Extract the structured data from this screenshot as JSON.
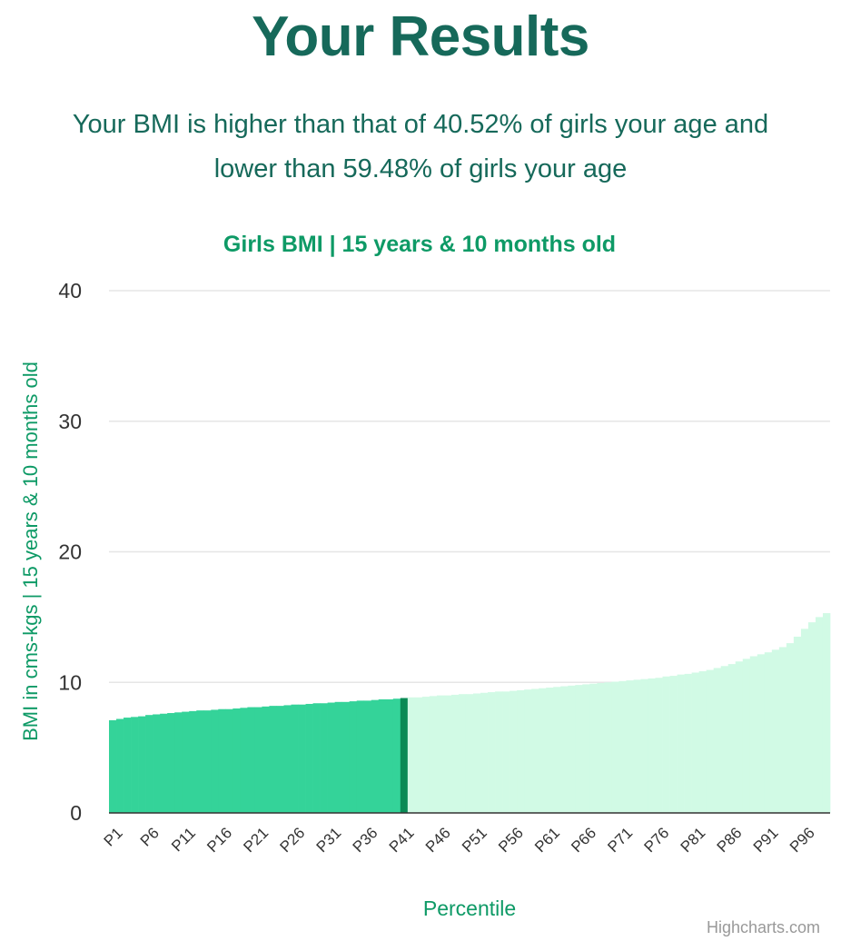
{
  "page": {
    "title": "Your Results",
    "summary_line1": "Your BMI is higher than that of 40.52% of girls your age and",
    "summary_line2": "lower than 59.48% of girls your age"
  },
  "credit": "Highcharts.com",
  "colors": {
    "heading": "#16695a",
    "accent": "#0e9a66",
    "bar_below": "#34d399",
    "bar_selected": "#0a8a55",
    "bar_above": "#d1fae5",
    "grid": "#e6e6e6",
    "axis_text": "#333333"
  },
  "chart_data": {
    "type": "bar",
    "title": "Girls BMI | 15 years & 10 months old",
    "xlabel": "Percentile",
    "ylabel": "BMI in cms-kgs | 15 years & 10 months old",
    "ylim": [
      0,
      40
    ],
    "yticks": [
      0,
      10,
      20,
      30,
      40
    ],
    "grid": true,
    "selected_category": "P41",
    "categories": [
      "P1",
      "P2",
      "P3",
      "P4",
      "P5",
      "P6",
      "P7",
      "P8",
      "P9",
      "P10",
      "P11",
      "P12",
      "P13",
      "P14",
      "P15",
      "P16",
      "P17",
      "P18",
      "P19",
      "P20",
      "P21",
      "P22",
      "P23",
      "P24",
      "P25",
      "P26",
      "P27",
      "P28",
      "P29",
      "P30",
      "P31",
      "P32",
      "P33",
      "P34",
      "P35",
      "P36",
      "P37",
      "P38",
      "P39",
      "P40",
      "P41",
      "P42",
      "P43",
      "P44",
      "P45",
      "P46",
      "P47",
      "P48",
      "P49",
      "P50",
      "P51",
      "P52",
      "P53",
      "P54",
      "P55",
      "P56",
      "P57",
      "P58",
      "P59",
      "P60",
      "P61",
      "P62",
      "P63",
      "P64",
      "P65",
      "P66",
      "P67",
      "P68",
      "P69",
      "P70",
      "P71",
      "P72",
      "P73",
      "P74",
      "P75",
      "P76",
      "P77",
      "P78",
      "P79",
      "P80",
      "P81",
      "P82",
      "P83",
      "P84",
      "P85",
      "P86",
      "P87",
      "P88",
      "P89",
      "P90",
      "P91",
      "P92",
      "P93",
      "P94",
      "P95",
      "P96",
      "P97",
      "P98",
      "P99"
    ],
    "tick_labels": [
      "P1",
      "P6",
      "P11",
      "P16",
      "P21",
      "P26",
      "P31",
      "P36",
      "P41",
      "P46",
      "P51",
      "P56",
      "P61",
      "P66",
      "P71",
      "P76",
      "P81",
      "P86",
      "P91",
      "P96"
    ],
    "values": [
      7.1,
      7.2,
      7.3,
      7.35,
      7.4,
      7.5,
      7.55,
      7.6,
      7.65,
      7.7,
      7.75,
      7.8,
      7.85,
      7.85,
      7.9,
      7.95,
      7.95,
      8.0,
      8.05,
      8.1,
      8.1,
      8.15,
      8.2,
      8.2,
      8.25,
      8.3,
      8.3,
      8.35,
      8.4,
      8.4,
      8.45,
      8.5,
      8.5,
      8.55,
      8.6,
      8.6,
      8.65,
      8.7,
      8.7,
      8.75,
      8.8,
      8.85,
      8.85,
      8.9,
      8.95,
      9.0,
      9.0,
      9.05,
      9.1,
      9.1,
      9.15,
      9.2,
      9.25,
      9.3,
      9.3,
      9.35,
      9.4,
      9.45,
      9.5,
      9.55,
      9.6,
      9.65,
      9.7,
      9.75,
      9.8,
      9.85,
      9.9,
      9.95,
      10.0,
      10.05,
      10.1,
      10.15,
      10.2,
      10.25,
      10.3,
      10.35,
      10.45,
      10.5,
      10.6,
      10.65,
      10.75,
      10.85,
      10.95,
      11.1,
      11.25,
      11.4,
      11.6,
      11.8,
      12.0,
      12.15,
      12.3,
      12.5,
      12.7,
      13.0,
      13.5,
      14.1,
      14.6,
      15.0,
      15.3
    ]
  }
}
